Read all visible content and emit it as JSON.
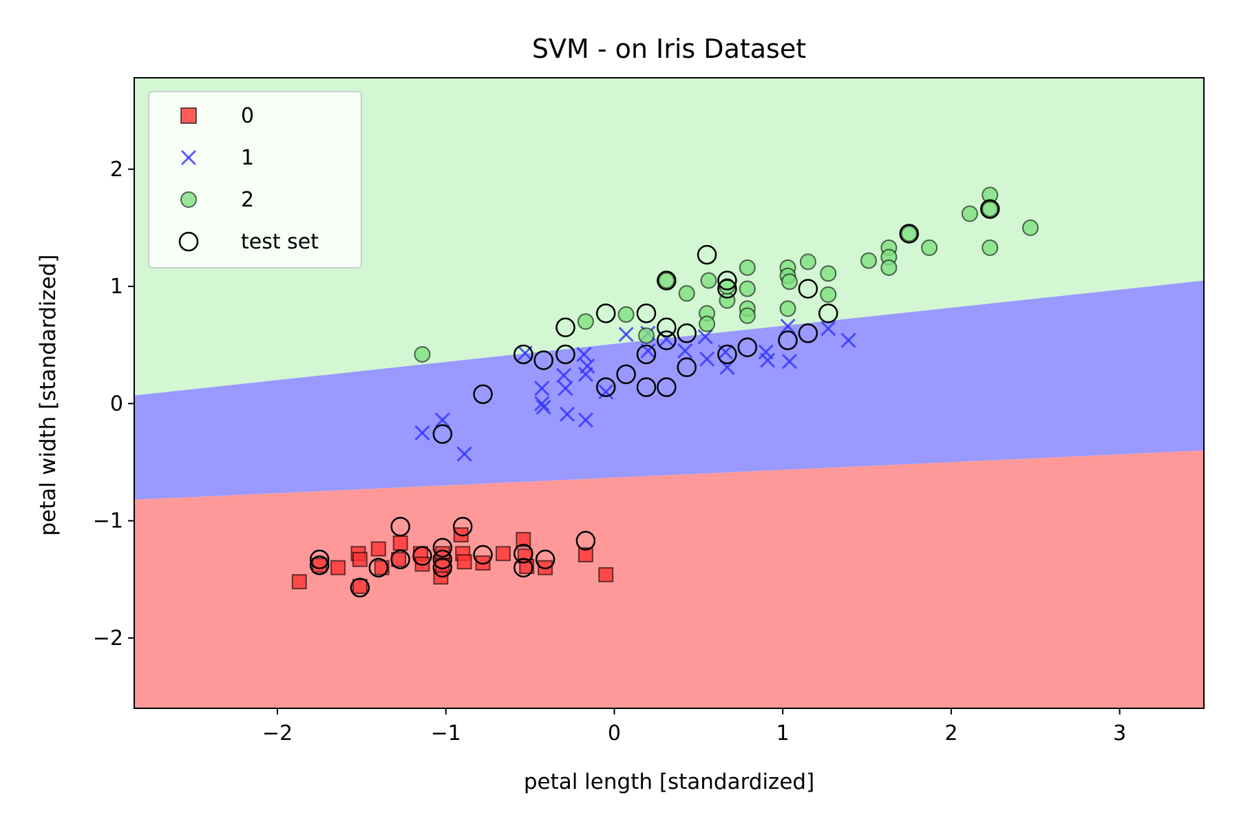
{
  "chart_data": {
    "type": "scatter",
    "title": "SVM - on Iris Dataset",
    "xlabel": "petal length [standardized]",
    "ylabel": "petal width [standardized]",
    "xlim": [
      -2.85,
      3.5
    ],
    "ylim": [
      -2.6,
      2.78
    ],
    "xticks": [
      {
        "value": -2,
        "label": "−2"
      },
      {
        "value": -1,
        "label": "−1"
      },
      {
        "value": 0,
        "label": "0"
      },
      {
        "value": 1,
        "label": "1"
      },
      {
        "value": 2,
        "label": "2"
      },
      {
        "value": 3,
        "label": "3"
      }
    ],
    "yticks": [
      {
        "value": -2,
        "label": "−2"
      },
      {
        "value": -1,
        "label": "−1"
      },
      {
        "value": 0,
        "label": "0"
      },
      {
        "value": 1,
        "label": "1"
      },
      {
        "value": 2,
        "label": "2"
      }
    ],
    "grid": false,
    "legend_position": "top-left",
    "decision_regions": {
      "colors": {
        "0": "#ff9999",
        "1": "#9999ff",
        "2": "#d2f7d2"
      },
      "boundary_0_1": [
        [
          -2.85,
          -0.82
        ],
        [
          3.5,
          -0.4
        ]
      ],
      "boundary_1_2": [
        [
          -2.85,
          0.07
        ],
        [
          3.5,
          1.05
        ]
      ]
    },
    "series": [
      {
        "name": "0",
        "marker": "square",
        "color": "#ff3333",
        "points": [
          [
            -1.87,
            -1.52
          ],
          [
            -1.75,
            -1.38
          ],
          [
            -1.64,
            -1.4
          ],
          [
            -1.52,
            -1.28
          ],
          [
            -1.51,
            -1.33
          ],
          [
            -1.51,
            -1.56
          ],
          [
            -1.4,
            -1.24
          ],
          [
            -1.38,
            -1.4
          ],
          [
            -1.28,
            -1.33
          ],
          [
            -1.27,
            -1.19
          ],
          [
            -1.15,
            -1.28
          ],
          [
            -1.14,
            -1.37
          ],
          [
            -1.03,
            -1.48
          ],
          [
            -1.02,
            -1.28
          ],
          [
            -1.02,
            -1.38
          ],
          [
            -0.91,
            -1.12
          ],
          [
            -0.9,
            -1.28
          ],
          [
            -0.89,
            -1.35
          ],
          [
            -0.78,
            -1.36
          ],
          [
            -0.66,
            -1.28
          ],
          [
            -0.54,
            -1.16
          ],
          [
            -0.53,
            -1.3
          ],
          [
            -0.52,
            -1.39
          ],
          [
            -0.41,
            -1.4
          ],
          [
            -0.17,
            -1.29
          ],
          [
            -0.05,
            -1.46
          ]
        ]
      },
      {
        "name": "1",
        "marker": "x",
        "color": "#3333ff",
        "points": [
          [
            -1.14,
            -0.25
          ],
          [
            -1.02,
            -0.14
          ],
          [
            -0.89,
            -0.43
          ],
          [
            -0.53,
            0.43
          ],
          [
            -0.43,
            0.13
          ],
          [
            -0.43,
            0.0
          ],
          [
            -0.42,
            -0.03
          ],
          [
            -0.3,
            0.24
          ],
          [
            -0.29,
            0.13
          ],
          [
            -0.28,
            -0.09
          ],
          [
            -0.18,
            0.42
          ],
          [
            -0.17,
            0.25
          ],
          [
            -0.17,
            -0.14
          ],
          [
            -0.16,
            0.32
          ],
          [
            -0.05,
            0.1
          ],
          [
            0.07,
            0.59
          ],
          [
            0.2,
            0.45
          ],
          [
            0.2,
            0.6
          ],
          [
            0.31,
            0.55
          ],
          [
            0.42,
            0.45
          ],
          [
            0.54,
            0.57
          ],
          [
            0.55,
            0.38
          ],
          [
            0.66,
            0.44
          ],
          [
            0.67,
            0.31
          ],
          [
            0.9,
            0.44
          ],
          [
            0.91,
            0.37
          ],
          [
            1.03,
            0.66
          ],
          [
            1.04,
            0.36
          ],
          [
            1.27,
            0.64
          ],
          [
            1.39,
            0.54
          ]
        ]
      },
      {
        "name": "2",
        "marker": "circle",
        "color": "#7fe07f",
        "points": [
          [
            -1.14,
            0.42
          ],
          [
            -0.17,
            0.7
          ],
          [
            0.07,
            0.76
          ],
          [
            0.19,
            0.58
          ],
          [
            0.31,
            1.05
          ],
          [
            0.43,
            0.94
          ],
          [
            0.55,
            0.77
          ],
          [
            0.55,
            0.68
          ],
          [
            0.56,
            1.05
          ],
          [
            0.67,
            0.88
          ],
          [
            0.67,
            1.0
          ],
          [
            0.79,
            0.98
          ],
          [
            0.79,
            1.16
          ],
          [
            0.79,
            0.81
          ],
          [
            0.79,
            0.75
          ],
          [
            1.03,
            1.16
          ],
          [
            1.03,
            1.09
          ],
          [
            1.04,
            1.04
          ],
          [
            1.03,
            0.81
          ],
          [
            1.15,
            1.21
          ],
          [
            1.27,
            1.11
          ],
          [
            1.27,
            0.93
          ],
          [
            1.51,
            1.22
          ],
          [
            1.63,
            1.33
          ],
          [
            1.63,
            1.25
          ],
          [
            1.63,
            1.16
          ],
          [
            1.75,
            1.45
          ],
          [
            1.87,
            1.33
          ],
          [
            2.11,
            1.62
          ],
          [
            2.23,
            1.78
          ],
          [
            2.23,
            1.66
          ],
          [
            2.23,
            1.33
          ],
          [
            2.47,
            1.5
          ]
        ]
      }
    ],
    "test_set": {
      "name": "test set",
      "marker": "open-circle",
      "points": [
        [
          -1.75,
          -1.33
        ],
        [
          -1.75,
          -1.38
        ],
        [
          -1.51,
          -1.57
        ],
        [
          -1.4,
          -1.4
        ],
        [
          -1.27,
          -1.05
        ],
        [
          -1.27,
          -1.33
        ],
        [
          -1.14,
          -1.3
        ],
        [
          -1.02,
          -1.23
        ],
        [
          -1.02,
          -1.33
        ],
        [
          -1.02,
          -1.4
        ],
        [
          -0.9,
          -1.05
        ],
        [
          -0.78,
          -1.29
        ],
        [
          -0.54,
          -1.28
        ],
        [
          -0.54,
          -1.4
        ],
        [
          -0.41,
          -1.33
        ],
        [
          -0.17,
          -1.17
        ],
        [
          -1.02,
          -0.26
        ],
        [
          -0.78,
          0.08
        ],
        [
          -0.54,
          0.42
        ],
        [
          -0.42,
          0.37
        ],
        [
          -0.29,
          0.42
        ],
        [
          -0.29,
          0.65
        ],
        [
          -0.05,
          0.77
        ],
        [
          -0.05,
          0.14
        ],
        [
          0.07,
          0.25
        ],
        [
          0.19,
          0.77
        ],
        [
          0.19,
          0.42
        ],
        [
          0.19,
          0.14
        ],
        [
          0.31,
          0.54
        ],
        [
          0.31,
          0.14
        ],
        [
          0.31,
          1.05
        ],
        [
          0.31,
          0.65
        ],
        [
          0.43,
          0.6
        ],
        [
          0.43,
          0.31
        ],
        [
          0.55,
          1.27
        ],
        [
          0.67,
          1.05
        ],
        [
          0.67,
          0.98
        ],
        [
          0.67,
          0.42
        ],
        [
          0.79,
          0.48
        ],
        [
          1.03,
          0.54
        ],
        [
          1.15,
          0.6
        ],
        [
          1.15,
          0.98
        ],
        [
          1.27,
          0.77
        ],
        [
          1.75,
          1.45
        ],
        [
          2.23,
          1.66
        ]
      ]
    }
  }
}
